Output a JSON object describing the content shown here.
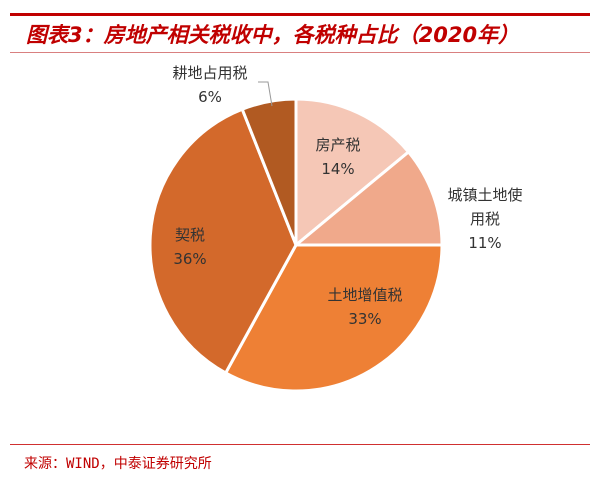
{
  "title": "图表3：房地产相关税收中，各税种占比（2020年）",
  "source": "来源：WIND，中泰证券研究所",
  "chart_data": {
    "type": "pie",
    "title": "图表3：房地产相关税收中，各税种占比（2020年）",
    "start_angle": "12 o'clock, clockwise",
    "categories": [
      "房产税",
      "城镇土地使用税",
      "土地增值税",
      "契税",
      "耕地占用税"
    ],
    "display_labels": [
      [
        "房产税"
      ],
      [
        "城镇土地使",
        "用税"
      ],
      [
        "土地增值税"
      ],
      [
        "契税"
      ],
      [
        "耕地占用税"
      ]
    ],
    "values": [
      14,
      11,
      33,
      36,
      6
    ],
    "value_labels": [
      "14%",
      "11%",
      "33%",
      "36%",
      "6%"
    ],
    "colors": [
      "#f5c7b6",
      "#f0a98b",
      "#ee8035",
      "#d3692b",
      "#b15a22"
    ]
  }
}
